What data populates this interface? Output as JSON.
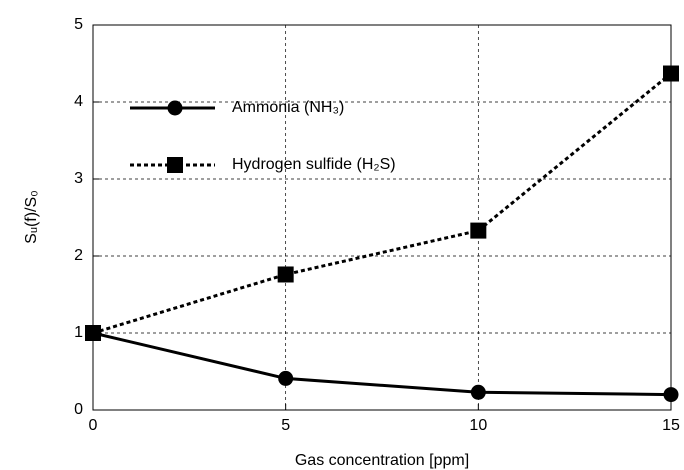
{
  "chart_data": {
    "type": "line",
    "x_label": "Gas concentration  [ppm]",
    "y_label": "Sᵤ(f)/S₀",
    "x": [
      0,
      5,
      10,
      15
    ],
    "series": [
      {
        "name": "Ammonia (NH₃)",
        "color": "#000000",
        "linestyle": "solid",
        "marker": "circle",
        "values": [
          1.0,
          0.41,
          0.23,
          0.2
        ]
      },
      {
        "name": "Hydrogen sulfide (H₂S)",
        "color": "#000000",
        "linestyle": "dotted",
        "marker": "square",
        "values": [
          1.0,
          1.76,
          2.33,
          4.37
        ]
      }
    ],
    "xlim": [
      0,
      15
    ],
    "xticks": [
      0,
      5,
      10,
      15
    ],
    "ylim": [
      0,
      5
    ],
    "yticks": [
      0,
      1,
      2,
      3,
      4,
      5
    ],
    "grid": true,
    "legend": "upper left"
  }
}
